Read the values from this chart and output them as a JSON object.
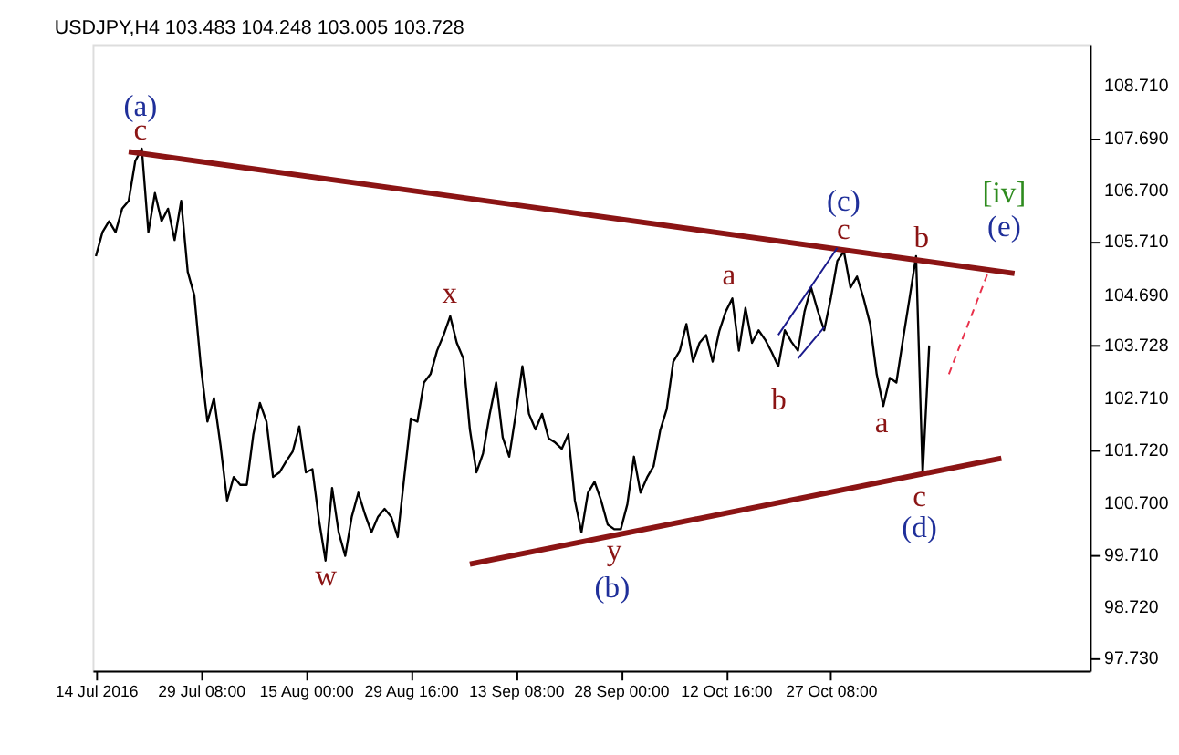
{
  "chart_data": {
    "type": "line",
    "title": "USDJPY,H4  103.483 104.248 103.005 103.728",
    "categories": [
      "14 Jul 2016",
      null,
      null,
      null,
      null,
      null,
      null,
      null,
      null,
      null,
      null,
      null,
      null,
      null,
      null,
      null,
      "29 Jul 08:00",
      null,
      null,
      null,
      null,
      null,
      null,
      null,
      null,
      null,
      null,
      null,
      null,
      null,
      null,
      null,
      "15 Aug 00:00",
      null,
      null,
      null,
      null,
      null,
      null,
      null,
      null,
      null,
      null,
      null,
      null,
      null,
      null,
      null,
      "29 Aug 16:00",
      null,
      null,
      null,
      null,
      null,
      null,
      null,
      null,
      null,
      null,
      null,
      null,
      null,
      null,
      null,
      "13 Sep 08:00",
      null,
      null,
      null,
      null,
      null,
      null,
      null,
      null,
      null,
      null,
      null,
      null,
      null,
      null,
      null,
      "28 Sep 00:00",
      null,
      null,
      null,
      null,
      null,
      null,
      null,
      null,
      null,
      null,
      null,
      null,
      null,
      null,
      null,
      "12 Oct 16:00",
      null,
      null,
      null,
      null,
      null,
      null,
      null,
      null,
      null,
      null,
      null,
      null,
      null,
      null,
      null,
      "27 Oct 08:00",
      null,
      null,
      null,
      null,
      null,
      null,
      null,
      null,
      null,
      null,
      null,
      null,
      null,
      null,
      null,
      null,
      null,
      null,
      null,
      null,
      null,
      null,
      null,
      null,
      null,
      null,
      null,
      null,
      null,
      null,
      null,
      null,
      null,
      null,
      null,
      null,
      null,
      null,
      null
    ],
    "ylim": [
      97.5,
      109.5
    ],
    "yticks": [
      {
        "value": 97.73,
        "label": "97.730"
      },
      {
        "value": 98.72,
        "label": "98.720"
      },
      {
        "value": 99.71,
        "label": "99.710"
      },
      {
        "value": 100.7,
        "label": "100.700"
      },
      {
        "value": 101.72,
        "label": "101.720"
      },
      {
        "value": 102.71,
        "label": "102.710"
      },
      {
        "value": 103.728,
        "label": "103.728"
      },
      {
        "value": 104.69,
        "label": "104.690"
      },
      {
        "value": 105.71,
        "label": "105.710"
      },
      {
        "value": 106.7,
        "label": "106.700"
      },
      {
        "value": 107.69,
        "label": "107.690"
      },
      {
        "value": 108.71,
        "label": "108.710"
      }
    ],
    "grid": false,
    "marker": "none",
    "series": [
      {
        "color": "#000000",
        "line_style": "solid",
        "values": [
          105.44,
          105.9,
          106.11,
          105.9,
          106.35,
          106.5,
          107.26,
          107.5,
          105.9,
          106.65,
          106.11,
          106.35,
          105.75,
          106.5,
          105.14,
          104.69,
          103.33,
          102.27,
          102.72,
          101.81,
          100.76,
          101.21,
          101.06,
          101.06,
          102.03,
          102.63,
          102.27,
          101.21,
          101.3,
          101.51,
          101.7,
          102.18,
          101.3,
          101.36,
          100.39,
          99.61,
          101.0,
          100.15,
          99.7,
          100.45,
          100.91,
          100.5,
          100.15,
          100.45,
          100.6,
          100.45,
          100.06,
          101.21,
          102.33,
          102.27,
          103.02,
          103.18,
          103.63,
          103.93,
          104.29,
          103.78,
          103.48,
          102.12,
          101.3,
          101.66,
          102.4,
          103.02,
          101.97,
          101.6,
          102.42,
          103.33,
          102.42,
          102.12,
          102.42,
          101.95,
          101.87,
          101.75,
          102.03,
          100.76,
          100.15,
          100.91,
          101.12,
          100.76,
          100.3,
          100.21,
          100.21,
          100.69,
          101.6,
          100.91,
          101.2,
          101.42,
          102.1,
          102.51,
          103.42,
          103.63,
          104.14,
          103.42,
          103.78,
          103.93,
          103.42,
          104.0,
          104.38,
          104.63,
          103.63,
          104.45,
          103.78,
          104.02,
          103.84,
          103.6,
          103.33,
          104.02,
          103.8,
          103.63,
          104.38,
          104.84,
          104.4,
          104.02,
          104.63,
          105.35,
          105.53,
          104.84,
          105.05,
          104.63,
          104.14,
          103.18,
          102.57,
          103.11,
          103.02,
          103.84,
          104.63,
          105.44,
          101.25,
          103.73,
          null,
          null,
          null,
          null,
          null,
          null,
          null,
          null,
          null,
          null,
          null,
          null,
          null,
          null,
          null,
          null,
          null,
          null,
          null,
          null,
          null,
          null,
          null,
          null
        ]
      },
      {
        "color": "#8b1414",
        "line_style": "solid",
        "values": [
          null,
          null,
          null,
          null,
          null,
          107.44,
          null,
          null,
          null,
          null,
          null,
          null,
          null,
          null,
          null,
          null,
          null,
          null,
          null,
          null,
          null,
          null,
          null,
          null,
          null,
          null,
          null,
          null,
          null,
          null,
          null,
          null,
          null,
          null,
          null,
          null,
          null,
          null,
          null,
          null,
          null,
          null,
          null,
          null,
          null,
          null,
          null,
          null,
          null,
          null,
          null,
          null,
          null,
          null,
          null,
          null,
          null,
          null,
          null,
          null,
          null,
          null,
          null,
          null,
          null,
          null,
          null,
          null,
          null,
          null,
          null,
          null,
          null,
          null,
          null,
          null,
          null,
          null,
          null,
          null,
          null,
          null,
          null,
          null,
          null,
          null,
          null,
          null,
          null,
          null,
          null,
          null,
          null,
          null,
          null,
          null,
          null,
          null,
          null,
          null,
          null,
          null,
          null,
          null,
          null,
          null,
          null,
          null,
          null,
          null,
          null,
          null,
          null,
          null,
          null,
          null,
          null,
          null,
          null,
          null,
          null,
          null,
          null,
          null,
          null,
          null,
          null,
          null,
          null,
          null,
          null,
          null,
          null,
          null,
          null,
          null,
          null,
          null,
          null,
          null,
          105.11,
          null,
          null,
          null,
          null,
          null,
          null,
          null,
          null,
          null,
          null,
          null
        ]
      },
      {
        "color": "#8b1414",
        "line_style": "solid",
        "values": [
          null,
          null,
          null,
          null,
          null,
          null,
          null,
          null,
          null,
          null,
          null,
          null,
          null,
          null,
          null,
          null,
          null,
          null,
          null,
          null,
          null,
          null,
          null,
          null,
          null,
          null,
          null,
          null,
          null,
          null,
          null,
          null,
          null,
          null,
          null,
          null,
          null,
          null,
          null,
          null,
          null,
          null,
          null,
          null,
          null,
          null,
          null,
          null,
          null,
          null,
          null,
          null,
          null,
          null,
          null,
          null,
          null,
          99.54,
          null,
          null,
          null,
          null,
          null,
          null,
          null,
          null,
          null,
          null,
          null,
          null,
          null,
          null,
          null,
          null,
          null,
          null,
          null,
          null,
          null,
          null,
          null,
          null,
          null,
          null,
          null,
          null,
          null,
          null,
          null,
          null,
          null,
          null,
          null,
          null,
          null,
          null,
          null,
          null,
          null,
          null,
          null,
          null,
          null,
          null,
          null,
          null,
          null,
          null,
          null,
          null,
          null,
          null,
          null,
          null,
          null,
          null,
          null,
          null,
          null,
          null,
          null,
          null,
          null,
          null,
          null,
          null,
          null,
          null,
          null,
          null,
          null,
          null,
          null,
          null,
          null,
          null,
          null,
          null,
          101.57,
          null,
          null,
          null,
          null,
          null,
          null,
          null,
          null,
          null,
          null,
          null,
          null,
          null
        ]
      },
      {
        "color": "#1a1a8c",
        "line_style": "solid",
        "values": [
          null,
          null,
          null,
          null,
          null,
          null,
          null,
          null,
          null,
          null,
          null,
          null,
          null,
          null,
          null,
          null,
          null,
          null,
          null,
          null,
          null,
          null,
          null,
          null,
          null,
          null,
          null,
          null,
          null,
          null,
          null,
          null,
          null,
          null,
          null,
          null,
          null,
          null,
          null,
          null,
          null,
          null,
          null,
          null,
          null,
          null,
          null,
          null,
          null,
          null,
          null,
          null,
          null,
          null,
          null,
          null,
          null,
          null,
          null,
          null,
          null,
          null,
          null,
          null,
          null,
          null,
          null,
          null,
          null,
          null,
          null,
          null,
          null,
          null,
          null,
          null,
          null,
          null,
          null,
          null,
          null,
          null,
          null,
          null,
          null,
          null,
          null,
          null,
          null,
          null,
          null,
          null,
          null,
          null,
          null,
          null,
          null,
          null,
          null,
          null,
          null,
          null,
          null,
          null,
          103.93,
          null,
          null,
          null,
          null,
          null,
          null,
          null,
          null,
          105.6,
          null,
          null,
          null,
          null,
          null,
          null,
          null,
          null,
          null,
          null,
          null,
          null,
          null,
          null,
          null,
          null,
          null,
          null,
          null,
          null,
          null,
          null,
          null,
          null,
          null,
          null,
          null,
          null,
          null,
          null,
          null,
          null,
          null,
          null,
          null,
          null,
          null,
          null
        ]
      },
      {
        "color": "#1a1a8c",
        "line_style": "solid",
        "values": [
          null,
          null,
          null,
          null,
          null,
          null,
          null,
          null,
          null,
          null,
          null,
          null,
          null,
          null,
          null,
          null,
          null,
          null,
          null,
          null,
          null,
          null,
          null,
          null,
          null,
          null,
          null,
          null,
          null,
          null,
          null,
          null,
          null,
          null,
          null,
          null,
          null,
          null,
          null,
          null,
          null,
          null,
          null,
          null,
          null,
          null,
          null,
          null,
          null,
          null,
          null,
          null,
          null,
          null,
          null,
          null,
          null,
          null,
          null,
          null,
          null,
          null,
          null,
          null,
          null,
          null,
          null,
          null,
          null,
          null,
          null,
          null,
          null,
          null,
          null,
          null,
          null,
          null,
          null,
          null,
          null,
          null,
          null,
          null,
          null,
          null,
          null,
          null,
          null,
          null,
          null,
          null,
          null,
          null,
          null,
          null,
          null,
          null,
          null,
          null,
          null,
          null,
          null,
          null,
          null,
          null,
          null,
          103.48,
          null,
          null,
          null,
          104.08,
          null,
          null,
          null,
          null,
          null,
          null,
          null,
          null,
          null,
          null,
          null,
          null,
          null,
          null,
          null,
          null,
          null,
          null,
          null,
          null,
          null,
          null,
          null,
          null,
          null,
          null,
          null,
          null,
          null,
          null,
          null,
          null,
          null,
          null,
          null,
          null,
          null,
          null,
          null,
          null
        ]
      },
      {
        "color": "#e8304a",
        "line_style": "dashed",
        "values": [
          null,
          null,
          null,
          null,
          null,
          null,
          null,
          null,
          null,
          null,
          null,
          null,
          null,
          null,
          null,
          null,
          null,
          null,
          null,
          null,
          null,
          null,
          null,
          null,
          null,
          null,
          null,
          null,
          null,
          null,
          null,
          null,
          null,
          null,
          null,
          null,
          null,
          null,
          null,
          null,
          null,
          null,
          null,
          null,
          null,
          null,
          null,
          null,
          null,
          null,
          null,
          null,
          null,
          null,
          null,
          null,
          null,
          null,
          null,
          null,
          null,
          null,
          null,
          null,
          null,
          null,
          null,
          null,
          null,
          null,
          null,
          null,
          null,
          null,
          null,
          null,
          null,
          null,
          null,
          null,
          null,
          null,
          null,
          null,
          null,
          null,
          null,
          null,
          null,
          null,
          null,
          null,
          null,
          null,
          null,
          null,
          null,
          null,
          null,
          null,
          null,
          null,
          null,
          null,
          null,
          null,
          null,
          null,
          null,
          null,
          null,
          null,
          null,
          null,
          null,
          null,
          null,
          null,
          null,
          null,
          null,
          null,
          null,
          null,
          null,
          null,
          null,
          null,
          null,
          null,
          103.18,
          null,
          null,
          null,
          null,
          null,
          105.14,
          null,
          null,
          null,
          null,
          null,
          null,
          null,
          null,
          null,
          null,
          null,
          null,
          null,
          null,
          null
        ]
      }
    ],
    "annotations": [
      "(a)",
      "c",
      "x",
      "w",
      "y",
      "(b)",
      "a",
      "b",
      "(c)",
      "c",
      "b",
      "[iv]",
      "(e)",
      "a",
      "c",
      "(d)"
    ]
  }
}
